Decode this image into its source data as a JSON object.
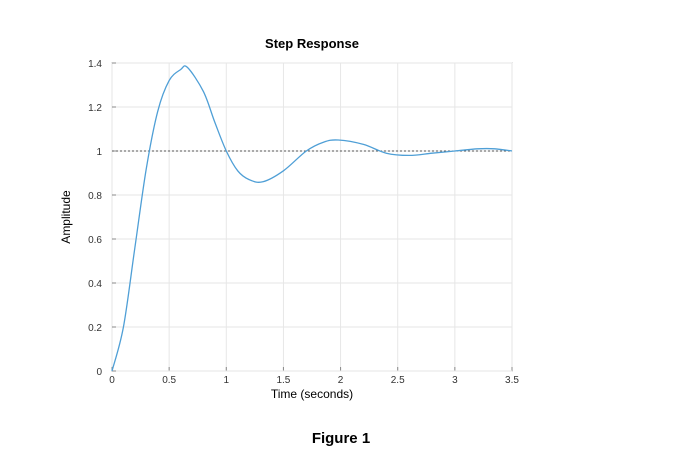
{
  "chart_data": {
    "type": "line",
    "title": "Step Response",
    "xlabel": "Time (seconds)",
    "ylabel": "Amplitude",
    "xlim": [
      0,
      3.5
    ],
    "ylim": [
      0,
      1.4
    ],
    "x_ticks": [
      "0",
      "0.5",
      "1",
      "1.5",
      "2",
      "2.5",
      "3",
      "3.5"
    ],
    "y_ticks": [
      "0",
      "0.2",
      "0.4",
      "0.6",
      "0.8",
      "1",
      "1.2",
      "1.4"
    ],
    "grid": true,
    "reference_line": {
      "y": 1,
      "style": "dotted"
    },
    "series": [
      {
        "color": "#4f9fd6",
        "x": [
          0,
          0.1,
          0.2,
          0.3,
          0.4,
          0.5,
          0.6,
          0.66,
          0.8,
          0.9,
          1.0,
          1.1,
          1.2,
          1.32,
          1.5,
          1.7,
          1.85,
          1.98,
          2.2,
          2.4,
          2.6,
          2.8,
          3.0,
          3.2,
          3.35,
          3.5
        ],
        "y": [
          0,
          0.2,
          0.56,
          0.92,
          1.18,
          1.32,
          1.37,
          1.38,
          1.27,
          1.13,
          1.0,
          0.91,
          0.87,
          0.86,
          0.91,
          1.0,
          1.04,
          1.05,
          1.03,
          0.99,
          0.98,
          0.99,
          1.0,
          1.01,
          1.01,
          1.0
        ]
      }
    ]
  },
  "caption": "Figure 1"
}
